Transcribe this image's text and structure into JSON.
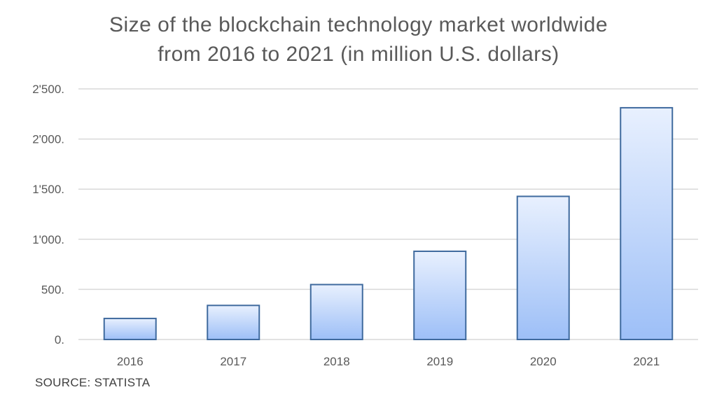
{
  "chart_data": {
    "type": "bar",
    "title_lines": [
      "Size of the blockchain technology market worldwide",
      "from 2016 to 2021 (in million U.S. dollars)"
    ],
    "categories": [
      "2016",
      "2017",
      "2018",
      "2019",
      "2020",
      "2021"
    ],
    "values": [
      210,
      340,
      548,
      880,
      1428,
      2312
    ],
    "yticks": [
      0,
      500,
      1000,
      1500,
      2000,
      2500
    ],
    "ytick_labels": [
      "0.",
      "500.",
      "1'000.",
      "1'500.",
      "2'000.",
      "2'500."
    ],
    "ylim": [
      0,
      2500
    ],
    "xlabel": "",
    "ylabel": "",
    "grid": true,
    "legend": "none",
    "colors": {
      "bar_top": "#e8f0fe",
      "bar_bottom": "#9dbff7",
      "bar_stroke": "#3f6a9e",
      "grid": "#d9d9d9",
      "tick_text": "#595959"
    },
    "source": "SOURCE: STATISTA"
  }
}
